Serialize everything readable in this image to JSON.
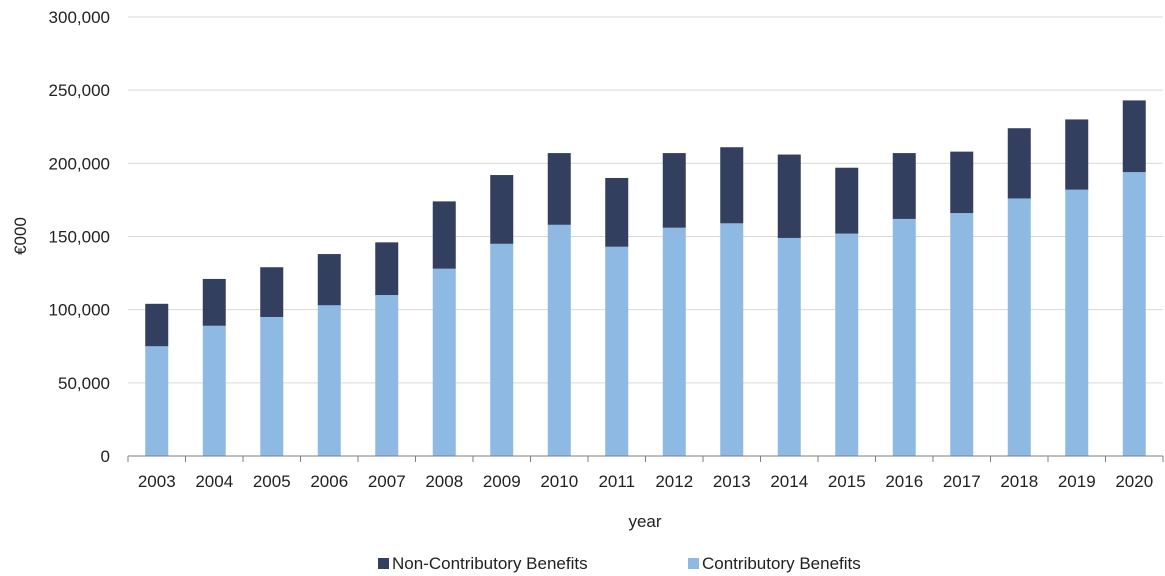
{
  "chart_data": {
    "type": "bar",
    "stacked": true,
    "title": "",
    "xlabel": "year",
    "ylabel": "€000",
    "ylim": [
      0,
      300000
    ],
    "yticks": [
      0,
      50000,
      100000,
      150000,
      200000,
      250000,
      300000
    ],
    "ytick_labels": [
      "0",
      "50,000",
      "100,000",
      "150,000",
      "200,000",
      "250,000",
      "300,000"
    ],
    "grid": true,
    "legend_position": "bottom",
    "categories": [
      "2003",
      "2004",
      "2005",
      "2006",
      "2007",
      "2008",
      "2009",
      "2010",
      "2011",
      "2012",
      "2013",
      "2014",
      "2015",
      "2016",
      "2017",
      "2018",
      "2019",
      "2020"
    ],
    "series": [
      {
        "name": "Contributory Benefits",
        "color": "#8DB9E2",
        "values": [
          75000,
          89000,
          95000,
          103000,
          110000,
          128000,
          145000,
          158000,
          143000,
          156000,
          159000,
          149000,
          152000,
          162000,
          166000,
          176000,
          182000,
          194000
        ]
      },
      {
        "name": "Non-Contributory Benefits",
        "color": "#333F5E",
        "values": [
          29000,
          32000,
          34000,
          35000,
          36000,
          46000,
          47000,
          49000,
          47000,
          51000,
          52000,
          57000,
          45000,
          45000,
          42000,
          48000,
          48000,
          49000
        ]
      }
    ],
    "legend_order": [
      "Non-Contributory Benefits",
      "Contributory Benefits"
    ]
  }
}
